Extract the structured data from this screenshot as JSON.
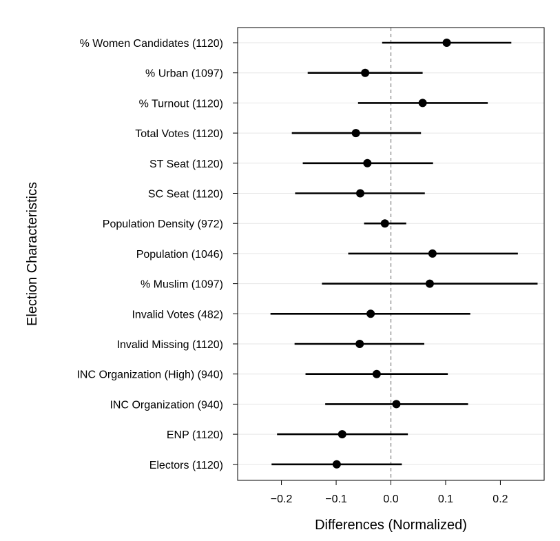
{
  "chart_data": {
    "type": "scatter",
    "subtype": "dot-and-whisker",
    "title": "",
    "xlabel": "Differences (Normalized)",
    "ylabel": "Election Characteristics",
    "xlim": [
      -0.28,
      0.28
    ],
    "xticks": [
      -0.2,
      -0.1,
      0.0,
      0.1,
      0.2
    ],
    "xtick_labels": [
      "−0.2",
      "−0.1",
      "0.0",
      "0.1",
      "0.2"
    ],
    "reference_line": 0.0,
    "grid": "horizontal",
    "colors": {
      "marks": "#000000",
      "grid": "#e6e6e6",
      "reference": "#888888"
    },
    "categories": [
      "% Women Candidates (1120)",
      "% Urban (1097)",
      "% Turnout (1120)",
      "Total Votes (1120)",
      "ST Seat (1120)",
      "SC Seat (1120)",
      "Population Density (972)",
      "Population (1046)",
      "% Muslim (1097)",
      "Invalid Votes (482)",
      "Invalid Missing (1120)",
      "INC Organization (High) (940)",
      "INC Organization (940)",
      "ENP (1120)",
      "Electors (1120)"
    ],
    "estimates": [
      0.102,
      -0.047,
      0.058,
      -0.064,
      -0.043,
      -0.056,
      -0.011,
      0.076,
      0.071,
      -0.037,
      -0.057,
      -0.026,
      0.01,
      -0.089,
      -0.099
    ],
    "lower": [
      -0.016,
      -0.152,
      -0.06,
      -0.181,
      -0.161,
      -0.175,
      -0.049,
      -0.078,
      -0.126,
      -0.22,
      -0.176,
      -0.156,
      -0.12,
      -0.208,
      -0.218
    ],
    "upper": [
      0.22,
      0.058,
      0.177,
      0.055,
      0.077,
      0.062,
      0.028,
      0.232,
      0.268,
      0.145,
      0.061,
      0.104,
      0.141,
      0.031,
      0.02
    ]
  }
}
